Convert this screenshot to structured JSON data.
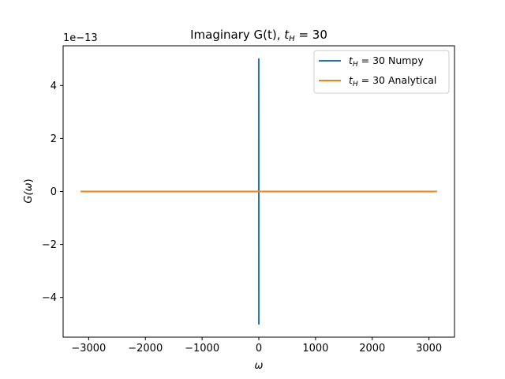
{
  "chart_data": {
    "type": "line",
    "title": "Imaginary G(t), t_H = 30",
    "title_prefix": "Imaginary G(t), ",
    "title_math_base": "t",
    "title_math_sub": "H",
    "title_math_rest": " = 30",
    "xlabel": "ω",
    "ylabel": "G(ω)",
    "ylabel_base": "G(",
    "ylabel_var": "ω",
    "ylabel_close": ")",
    "offset_text": "1e−13",
    "xlim": [
      -3450,
      3450
    ],
    "ylim": [
      -5.5,
      5.5
    ],
    "y_scale_factor": "1e-13",
    "xticks": [
      -3000,
      -2000,
      -1000,
      0,
      1000,
      2000,
      3000
    ],
    "xtick_labels": [
      "−3000",
      "−2000",
      "−1000",
      "0",
      "1000",
      "2000",
      "3000"
    ],
    "yticks": [
      -4,
      -2,
      0,
      2,
      4
    ],
    "ytick_labels": [
      "−4",
      "−2",
      "0",
      "2",
      "4"
    ],
    "grid": false,
    "legend_position": "top-right",
    "series": [
      {
        "name": "t_H = 30 Numpy",
        "legend_base": "t",
        "legend_sub": "H",
        "legend_rest": " = 30 Numpy",
        "color": "#1f77b4",
        "x": [
          -3141.6,
          -1,
          -0.5,
          0,
          0.5,
          1,
          3141.6
        ],
        "y": [
          0,
          0,
          5.0,
          0,
          -5.0,
          0,
          0
        ]
      },
      {
        "name": "t_H = 30 Analytical",
        "legend_base": "t",
        "legend_sub": "H",
        "legend_rest": " = 30 Analytical",
        "color": "#ff7f0e",
        "x": [
          -3141.6,
          3141.6
        ],
        "y": [
          0,
          0
        ]
      }
    ]
  }
}
